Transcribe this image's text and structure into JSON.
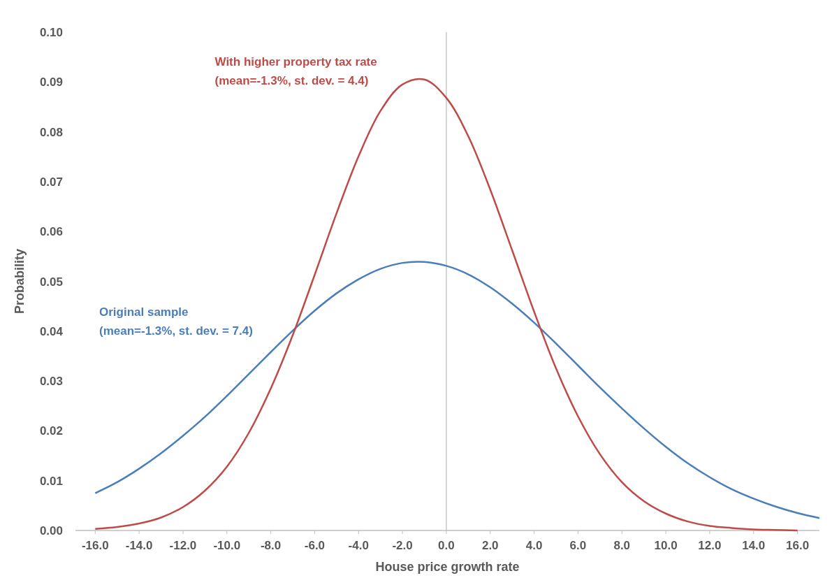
{
  "chart_data": {
    "type": "line",
    "xlabel": "House price growth rate",
    "ylabel": "Probability",
    "x": [
      -16,
      -15,
      -14,
      -13,
      -12,
      -11,
      -10,
      -9,
      -8,
      -7,
      -6,
      -5,
      -4,
      -3,
      -2,
      -1,
      0,
      1,
      2,
      3,
      4,
      5,
      6,
      7,
      8,
      9,
      10,
      11,
      12,
      13,
      14,
      15,
      16,
      17
    ],
    "series": [
      {
        "name": "Original sample\n(mean=-1.3%, st. dev. = 7.4)",
        "color": "#4a7ebb",
        "values": [
          0.0075,
          0.0097,
          0.0124,
          0.0155,
          0.019,
          0.0228,
          0.027,
          0.0314,
          0.0358,
          0.0401,
          0.0441,
          0.0476,
          0.0504,
          0.0525,
          0.0537,
          0.0539,
          0.0531,
          0.0514,
          0.0488,
          0.0455,
          0.0417,
          0.0375,
          0.0331,
          0.0287,
          0.0245,
          0.0205,
          0.0168,
          0.0135,
          0.0107,
          0.0083,
          0.0064,
          0.0048,
          0.0035,
          0.0025
        ]
      },
      {
        "name": "With higher property tax rate\n(mean=-1.3%, st. dev. = 4.4)",
        "color": "#be4b48",
        "values": [
          0.0003,
          0.0007,
          0.0014,
          0.0026,
          0.0047,
          0.008,
          0.0128,
          0.0196,
          0.0285,
          0.0392,
          0.0513,
          0.0637,
          0.0751,
          0.0842,
          0.0895,
          0.0905,
          0.0868,
          0.0791,
          0.0684,
          0.0562,
          0.0439,
          0.0325,
          0.0229,
          0.0153,
          0.0097,
          0.0059,
          0.0034,
          0.0018,
          0.0009,
          0.0005,
          0.0002,
          0.0001,
          0,
          null
        ]
      }
    ],
    "xlim": [
      -16.9,
      17
    ],
    "xticks": [
      {
        "value": -16,
        "label": "-16.0"
      },
      {
        "value": -14,
        "label": "-14.0"
      },
      {
        "value": -12,
        "label": "-12.0"
      },
      {
        "value": -10,
        "label": "-10.0"
      },
      {
        "value": -8,
        "label": "-8.0"
      },
      {
        "value": -6,
        "label": "-6.0"
      },
      {
        "value": -4,
        "label": "-4.0"
      },
      {
        "value": -2,
        "label": "-2.0"
      },
      {
        "value": 0,
        "label": "0.0"
      },
      {
        "value": 2,
        "label": "2.0"
      },
      {
        "value": 4,
        "label": "4.0"
      },
      {
        "value": 6,
        "label": "6.0"
      },
      {
        "value": 8,
        "label": "8.0"
      },
      {
        "value": 10,
        "label": "10.0"
      },
      {
        "value": 12,
        "label": "12.0"
      },
      {
        "value": 14,
        "label": "14.0"
      },
      {
        "value": 16,
        "label": "16.0"
      }
    ],
    "ylim": [
      0,
      0.1
    ],
    "yticks": [
      {
        "value": 0,
        "label": "0.00"
      },
      {
        "value": 0.01,
        "label": "0.01"
      },
      {
        "value": 0.02,
        "label": "0.02"
      },
      {
        "value": 0.03,
        "label": "0.03"
      },
      {
        "value": 0.04,
        "label": "0.04"
      },
      {
        "value": 0.05,
        "label": "0.05"
      },
      {
        "value": 0.06,
        "label": "0.06"
      },
      {
        "value": 0.07,
        "label": "0.07"
      },
      {
        "value": 0.08,
        "label": "0.08"
      },
      {
        "value": 0.09,
        "label": "0.09"
      },
      {
        "value": 0.1,
        "label": "0.10"
      }
    ],
    "ref_lines": [
      {
        "axis": "x",
        "value": 0,
        "color": "#bfbfbf"
      }
    ],
    "grid": false,
    "marker": "none",
    "line_style": "solid"
  }
}
